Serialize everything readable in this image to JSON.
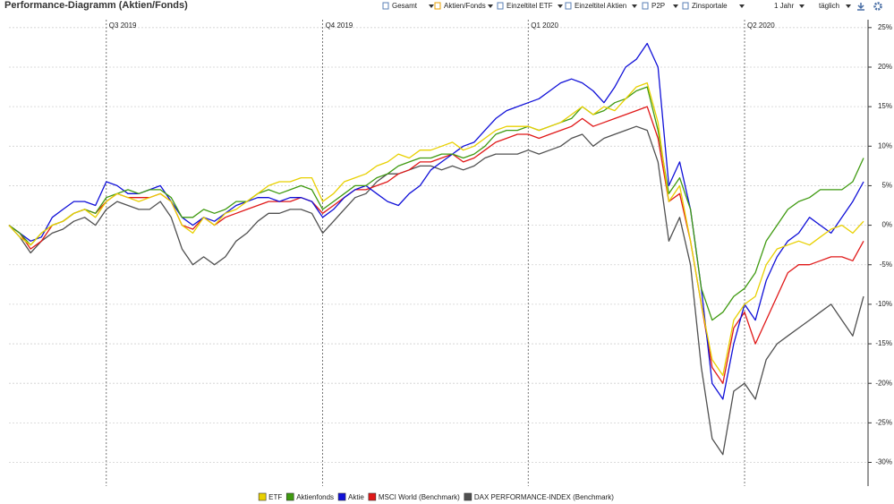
{
  "toolbar": {
    "items": [
      "Gesamt",
      "Aktien/Fonds",
      "Einzeltitel ETF",
      "Einzeltitel Aktien",
      "P2P",
      "Zinsportale"
    ],
    "period": "1 Jahr",
    "interval": "täglich"
  },
  "chart_data": {
    "type": "line",
    "title": "Performance-Diagramm (Aktien/Fonds)",
    "categories": [
      null,
      null,
      null,
      null,
      null,
      null,
      null,
      null,
      null,
      "Q3 2019",
      null,
      null,
      null,
      null,
      null,
      null,
      null,
      null,
      null,
      null,
      null,
      null,
      null,
      null,
      null,
      null,
      null,
      null,
      null,
      "Q4 2019",
      null,
      null,
      null,
      null,
      null,
      null,
      null,
      null,
      null,
      null,
      null,
      null,
      null,
      null,
      null,
      null,
      null,
      null,
      "Q1 2020",
      null,
      null,
      null,
      null,
      null,
      null,
      null,
      null,
      null,
      null,
      null,
      null,
      null,
      null,
      null,
      null,
      null,
      null,
      null,
      "Q2 2020",
      null,
      null,
      null,
      null,
      null,
      null,
      null,
      null,
      null,
      null,
      null
    ],
    "ylim": [
      -33,
      26
    ],
    "yticks": [
      {
        "value": 25,
        "label": "25%"
      },
      {
        "value": 20,
        "label": "20%"
      },
      {
        "value": 15,
        "label": "15%"
      },
      {
        "value": 10,
        "label": "10%"
      },
      {
        "value": 5,
        "label": "5%"
      },
      {
        "value": 0,
        "label": "0%"
      },
      {
        "value": -5,
        "label": "-5%"
      },
      {
        "value": -10,
        "label": "-10%"
      },
      {
        "value": -15,
        "label": "-15%"
      },
      {
        "value": -20,
        "label": "-20%"
      },
      {
        "value": -25,
        "label": "-25%"
      },
      {
        "value": -30,
        "label": "-30%"
      }
    ],
    "grid": true,
    "legend": "bottom",
    "series": [
      {
        "name": "ETF",
        "color": "#e8d000",
        "values": [
          0,
          -1.5,
          -2.5,
          -1,
          0,
          0.5,
          1.5,
          2,
          1,
          3,
          4,
          3.5,
          3,
          3.5,
          4,
          3,
          0,
          -1,
          1,
          0,
          1.5,
          2,
          3,
          4,
          5,
          5.5,
          5.5,
          6,
          6,
          3,
          4,
          5.5,
          6,
          6.5,
          7.5,
          8,
          9,
          8.5,
          9.5,
          9.5,
          10,
          10.5,
          9.5,
          10,
          11,
          12,
          12.5,
          12.5,
          12.5,
          12,
          12.5,
          13,
          14,
          15,
          14,
          15,
          14.5,
          16,
          17.5,
          18,
          13,
          3,
          5,
          -2,
          -10,
          -17,
          -19,
          -12,
          -10,
          -9,
          -5,
          -3,
          -2.5,
          -2,
          -2.5,
          -1.5,
          -0.5,
          0,
          -1,
          0.5
        ]
      },
      {
        "name": "Aktienfonds",
        "color": "#3f9a10",
        "values": [
          0,
          -1,
          -2.5,
          -1,
          0,
          0.5,
          1.5,
          2,
          1.5,
          3.5,
          4,
          4.5,
          4,
          4.5,
          4.5,
          3.5,
          1,
          1,
          2,
          1.5,
          2,
          3,
          3,
          4,
          4.5,
          4,
          4.5,
          5,
          4.5,
          2,
          3,
          4,
          5,
          5,
          6,
          6.5,
          7.5,
          8,
          8.5,
          8.5,
          9,
          9,
          8.5,
          9,
          10,
          11.5,
          12,
          12,
          12.5,
          12,
          12.5,
          13,
          13.5,
          15,
          14,
          14.5,
          15.5,
          16,
          17,
          17.5,
          12,
          4,
          6,
          2,
          -8,
          -12,
          -11,
          -9,
          -8,
          -6,
          -2,
          0,
          2,
          3,
          3.5,
          4.5,
          4.5,
          4.5,
          5.5,
          8.5
        ]
      },
      {
        "name": "Aktie",
        "color": "#1010d8",
        "values": [
          0,
          -1,
          -2,
          -1.5,
          1,
          2,
          3,
          3,
          2.5,
          5.5,
          5,
          4,
          4,
          4.5,
          5,
          3,
          1,
          0,
          1,
          0.5,
          1.5,
          2.5,
          3,
          3.5,
          3.5,
          3,
          3.5,
          3.5,
          3,
          1,
          2,
          3.5,
          4.5,
          5,
          4,
          3,
          2.5,
          4,
          5,
          7,
          8,
          9,
          10,
          10.5,
          12,
          13.5,
          14.5,
          15,
          15.5,
          16,
          17,
          18,
          18.5,
          18,
          17,
          15.5,
          17.5,
          20,
          21,
          23,
          20,
          5,
          8,
          2,
          -8,
          -20,
          -22,
          -15,
          -10,
          -12,
          -7,
          -4,
          -2,
          -1,
          1,
          0,
          -1,
          1,
          3,
          5.5
        ]
      },
      {
        "name": "MSCI World (Benchmark)",
        "color": "#e01818",
        "values": [
          0,
          -1,
          -3,
          -2,
          0,
          0.5,
          1.5,
          2,
          1.5,
          3,
          4,
          3.5,
          3.5,
          3.5,
          4,
          3,
          0,
          -0.5,
          1,
          0,
          1,
          1.5,
          2,
          2.5,
          3,
          3,
          3,
          3.5,
          3,
          1.5,
          2.5,
          3.5,
          4.5,
          4.5,
          5,
          5.5,
          6.5,
          7,
          8,
          8,
          8.5,
          9,
          8,
          8.5,
          9.5,
          10.5,
          11,
          11.5,
          11.5,
          11,
          11.5,
          12,
          12.5,
          13.5,
          12.5,
          13,
          13.5,
          14,
          14.5,
          15,
          11,
          3,
          4,
          -2,
          -10,
          -18,
          -20,
          -13,
          -11,
          -15,
          -12,
          -9,
          -6,
          -5,
          -5,
          -4.5,
          -4,
          -4,
          -4.5,
          -2
        ]
      },
      {
        "name": "DAX PERFORMANCE-INDEX (Benchmark)",
        "color": "#505050",
        "values": [
          0,
          -1.5,
          -3.5,
          -2,
          -1,
          -0.5,
          0.5,
          1,
          0,
          2,
          3,
          2.5,
          2,
          2,
          3,
          1,
          -3,
          -5,
          -4,
          -5,
          -4,
          -2,
          -1,
          0.5,
          1.5,
          1.5,
          2,
          2,
          1.5,
          -1,
          0.5,
          2,
          3.5,
          4,
          5.5,
          6.5,
          6.5,
          7,
          7.5,
          7.5,
          7,
          7.5,
          7,
          7.5,
          8.5,
          9,
          9,
          9,
          9.5,
          9,
          9.5,
          10,
          11,
          11.5,
          10,
          11,
          11.5,
          12,
          12.5,
          12,
          8,
          -2,
          1,
          -5,
          -18,
          -27,
          -29,
          -21,
          -20,
          -22,
          -17,
          -15,
          -14,
          -13,
          -12,
          -11,
          -10,
          -12,
          -14,
          -9
        ]
      }
    ]
  }
}
